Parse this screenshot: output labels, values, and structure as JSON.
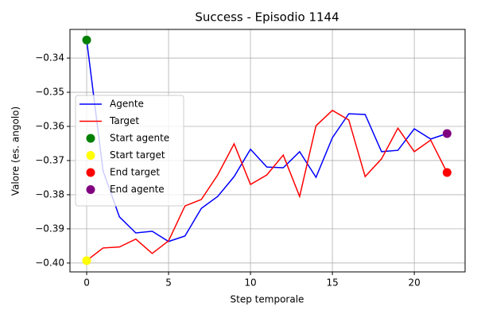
{
  "chart_data": {
    "type": "line",
    "title": "Success - Episodio 1144",
    "xlabel": "Step temporale",
    "ylabel": "Valore (es. angolo)",
    "x": [
      0,
      1,
      2,
      3,
      4,
      5,
      6,
      7,
      8,
      9,
      10,
      11,
      12,
      13,
      14,
      15,
      16,
      17,
      18,
      19,
      20,
      21,
      22
    ],
    "series": [
      {
        "name": "Agente",
        "color": "#0000ff",
        "values": [
          -0.3347,
          -0.373,
          -0.3865,
          -0.3912,
          -0.3907,
          -0.3937,
          -0.3921,
          -0.384,
          -0.3805,
          -0.3747,
          -0.3667,
          -0.3719,
          -0.3721,
          -0.3674,
          -0.3749,
          -0.3633,
          -0.3563,
          -0.3565,
          -0.3674,
          -0.367,
          -0.3607,
          -0.3637,
          -0.3621
        ]
      },
      {
        "name": "Target",
        "color": "#ff0000",
        "values": [
          -0.3993,
          -0.3956,
          -0.3953,
          -0.393,
          -0.3972,
          -0.3935,
          -0.3833,
          -0.3814,
          -0.3742,
          -0.3651,
          -0.377,
          -0.3742,
          -0.3684,
          -0.3805,
          -0.3598,
          -0.3553,
          -0.3581,
          -0.3747,
          -0.3695,
          -0.3605,
          -0.3674,
          -0.364,
          -0.3735
        ]
      }
    ],
    "points": [
      {
        "name": "Start agente",
        "color": "#008000",
        "x": 0,
        "y": -0.3347
      },
      {
        "name": "Start target",
        "color": "#ffff00",
        "x": 0,
        "y": -0.3993
      },
      {
        "name": "End target",
        "color": "#ff0000",
        "x": 22,
        "y": -0.3735
      },
      {
        "name": "End agente",
        "color": "#800080",
        "x": 22,
        "y": -0.3621
      }
    ],
    "xlim": [
      -1.02,
      23.1
    ],
    "ylim": [
      -0.4026,
      -0.3316
    ],
    "xticks": [
      0,
      5,
      10,
      15,
      20
    ],
    "yticks": [
      {
        "value": -0.4,
        "label": "−0.40"
      },
      {
        "value": -0.39,
        "label": "−0.39"
      },
      {
        "value": -0.38,
        "label": "−0.38"
      },
      {
        "value": -0.37,
        "label": "−0.37"
      },
      {
        "value": -0.36,
        "label": "−0.36"
      },
      {
        "value": -0.35,
        "label": "−0.35"
      },
      {
        "value": -0.34,
        "label": "−0.34"
      }
    ],
    "grid": true,
    "legend": "center left"
  }
}
